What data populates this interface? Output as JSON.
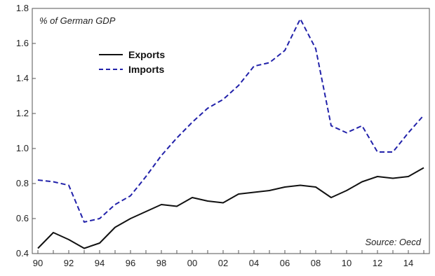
{
  "chart_data": {
    "type": "line",
    "title": "",
    "ylabel": "% of German GDP",
    "xlabel": "",
    "source": "Source: Oecd",
    "ylim": [
      0.4,
      1.8
    ],
    "xlim": [
      1990,
      2015
    ],
    "yticks": [
      "0.4",
      "0.6",
      "0.8",
      "1.0",
      "1.2",
      "1.4",
      "1.6",
      "1.8"
    ],
    "xticks": [
      "90",
      "92",
      "94",
      "96",
      "98",
      "00",
      "02",
      "04",
      "06",
      "08",
      "10",
      "12",
      "14"
    ],
    "x": [
      1990,
      1991,
      1992,
      1993,
      1994,
      1995,
      1996,
      1997,
      1998,
      1999,
      2000,
      2001,
      2002,
      2003,
      2004,
      2005,
      2006,
      2007,
      2008,
      2009,
      2010,
      2011,
      2012,
      2013,
      2014,
      2015
    ],
    "series": [
      {
        "name": "Exports",
        "color": "#111111",
        "style": "solid",
        "values": [
          0.43,
          0.52,
          0.48,
          0.43,
          0.46,
          0.55,
          0.6,
          0.64,
          0.68,
          0.67,
          0.72,
          0.7,
          0.69,
          0.74,
          0.75,
          0.76,
          0.78,
          0.79,
          0.78,
          0.72,
          0.76,
          0.81,
          0.84,
          0.83,
          0.84,
          0.89
        ]
      },
      {
        "name": "Imports",
        "color": "#2222aa",
        "style": "dashed",
        "values": [
          0.82,
          0.81,
          0.79,
          0.58,
          0.6,
          0.68,
          0.73,
          0.84,
          0.96,
          1.06,
          1.15,
          1.23,
          1.28,
          1.36,
          1.47,
          1.49,
          1.56,
          1.74,
          1.57,
          1.13,
          1.09,
          1.13,
          0.98,
          0.98,
          1.09,
          1.19
        ]
      }
    ],
    "grid": false,
    "legend": "upper-left"
  }
}
